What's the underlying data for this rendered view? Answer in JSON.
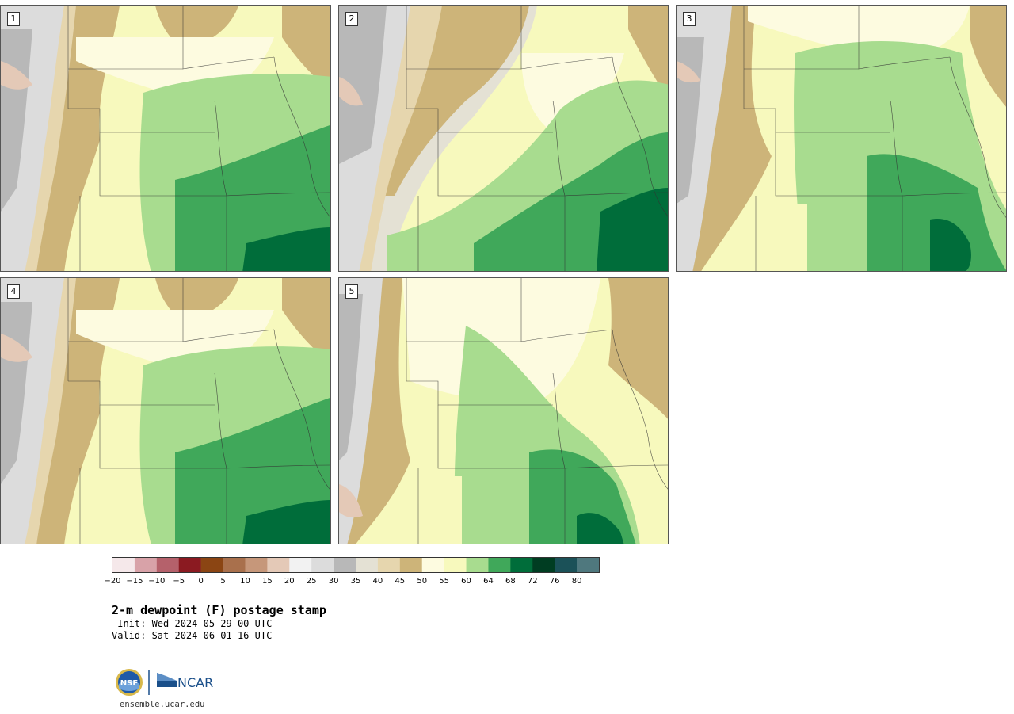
{
  "panels": [
    {
      "label": "1",
      "scheme": "moist"
    },
    {
      "label": "2",
      "scheme": "dry_west"
    },
    {
      "label": "3",
      "scheme": "mid"
    },
    {
      "label": "4",
      "scheme": "moist"
    },
    {
      "label": "5",
      "scheme": "pale"
    }
  ],
  "colorbar": {
    "colors": [
      "#f5e8ea",
      "#d8a2a8",
      "#b5616b",
      "#8b1a21",
      "#8b4513",
      "#a9704c",
      "#c6977a",
      "#e4c9b7",
      "#f2f2f2",
      "#dcdcdc",
      "#b8b8b8",
      "#e4e1d4",
      "#e6d6ae",
      "#cdb479",
      "#fdfbe0",
      "#f7f9bd",
      "#a8dc8f",
      "#40a85a",
      "#006d3a",
      "#003d22",
      "#1b5158",
      "#4f787e"
    ],
    "ticks": [
      "−20",
      "−15",
      "−10",
      "−5",
      "0",
      "5",
      "10",
      "15",
      "20",
      "25",
      "30",
      "35",
      "40",
      "45",
      "50",
      "55",
      "60",
      "64",
      "68",
      "72",
      "76",
      "80"
    ]
  },
  "title": "2-m dewpoint (F) postage stamp",
  "init": " Init: Wed 2024-05-29 00 UTC",
  "valid": "Valid: Sat 2024-06-01 16 UTC",
  "logos": {
    "nsf": "NSF",
    "ncar": "NCAR"
  },
  "url": "ensemble.ucar.edu"
}
